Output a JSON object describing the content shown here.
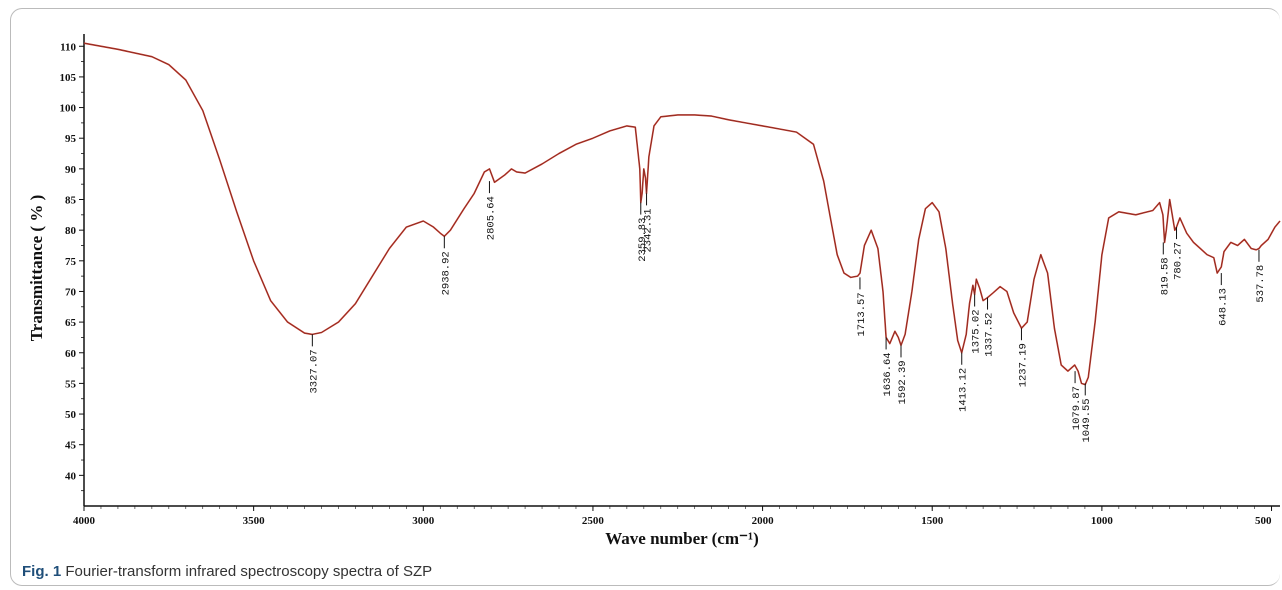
{
  "chart_data": {
    "type": "line",
    "title": "",
    "xlabel": "Wave number (cm⁻¹)",
    "ylabel": "Transmittance ( % )",
    "xlim": [
      4000,
      475
    ],
    "ylim": [
      35,
      112
    ],
    "x_ticks": [
      4000,
      3500,
      3000,
      2500,
      2000,
      1500,
      1000,
      500
    ],
    "y_ticks": [
      40,
      45,
      50,
      55,
      60,
      65,
      70,
      75,
      80,
      85,
      90,
      95,
      100,
      105,
      110
    ],
    "grid": false,
    "legend": "none",
    "line_color": "#c0392b",
    "series": [
      {
        "x": [
          4000,
          3900,
          3800,
          3750,
          3700,
          3650,
          3600,
          3550,
          3500,
          3450,
          3400,
          3350,
          3327,
          3300,
          3250,
          3200,
          3150,
          3100,
          3050,
          3000,
          2970,
          2950,
          2938,
          2920,
          2880,
          2850,
          2820,
          2805,
          2790,
          2760,
          2740,
          2725,
          2700,
          2650,
          2600,
          2550,
          2500,
          2450,
          2400,
          2375,
          2362,
          2359,
          2355,
          2350,
          2345,
          2342,
          2335,
          2320,
          2300,
          2250,
          2200,
          2150,
          2100,
          2050,
          2000,
          1950,
          1900,
          1850,
          1820,
          1800,
          1780,
          1760,
          1740,
          1720,
          1713,
          1700,
          1680,
          1660,
          1645,
          1636,
          1625,
          1610,
          1600,
          1592,
          1580,
          1560,
          1540,
          1520,
          1500,
          1480,
          1460,
          1440,
          1425,
          1413,
          1400,
          1390,
          1380,
          1375,
          1370,
          1360,
          1350,
          1337,
          1320,
          1300,
          1280,
          1260,
          1237,
          1220,
          1200,
          1180,
          1160,
          1140,
          1120,
          1100,
          1080,
          1070,
          1060,
          1049,
          1040,
          1020,
          1000,
          980,
          950,
          900,
          850,
          830,
          820,
          815,
          810,
          800,
          785,
          780,
          770,
          750,
          730,
          710,
          690,
          670,
          660,
          648,
          640,
          620,
          600,
          580,
          560,
          545,
          537,
          530,
          510,
          490,
          475
        ],
        "y": [
          110.5,
          109.5,
          108.3,
          107.0,
          104.5,
          99.5,
          91.5,
          83.0,
          75.0,
          68.5,
          65.0,
          63.2,
          63.0,
          63.3,
          65.0,
          68.0,
          72.5,
          77.0,
          80.5,
          81.5,
          80.5,
          79.5,
          79.0,
          80.0,
          83.5,
          86.0,
          89.5,
          90.0,
          87.8,
          89.0,
          90.0,
          89.5,
          89.3,
          90.8,
          92.5,
          94.0,
          95.0,
          96.2,
          97.0,
          96.8,
          90.0,
          84.5,
          86.0,
          90.0,
          88.5,
          86.0,
          92.0,
          97.0,
          98.5,
          98.8,
          98.8,
          98.6,
          98.0,
          97.5,
          97.0,
          96.5,
          96.0,
          94.0,
          88.0,
          82.0,
          76.0,
          73.0,
          72.3,
          72.5,
          73.0,
          77.5,
          80.0,
          77.0,
          70.0,
          62.5,
          61.5,
          63.5,
          62.5,
          61.2,
          63.0,
          70.0,
          78.5,
          83.5,
          84.5,
          83.0,
          77.0,
          68.0,
          62.0,
          60.0,
          63.0,
          68.0,
          71.0,
          69.5,
          72.0,
          70.5,
          68.5,
          69.0,
          69.8,
          70.8,
          70.0,
          66.5,
          64.0,
          65.0,
          72.0,
          76.0,
          73.0,
          64.0,
          58.0,
          57.0,
          58.0,
          57.0,
          55.0,
          54.8,
          56.0,
          65.0,
          76.0,
          82.0,
          83.0,
          82.5,
          83.2,
          84.5,
          82.5,
          78.0,
          80.0,
          85.0,
          80.0,
          80.5,
          82.0,
          79.5,
          78.0,
          77.0,
          76.0,
          75.5,
          73.0,
          74.0,
          76.5,
          78.0,
          77.5,
          78.5,
          77.0,
          76.8,
          77.0,
          77.5,
          78.5,
          80.5,
          81.5
        ]
      }
    ],
    "peak_labels": [
      {
        "x": 3327,
        "y": 63.0,
        "label": "3327.07"
      },
      {
        "x": 2938,
        "y": 79.0,
        "label": "2938.92"
      },
      {
        "x": 2805,
        "y": 88.0,
        "label": "2805.64"
      },
      {
        "x": 2359,
        "y": 84.5,
        "label": "2359.83"
      },
      {
        "x": 2342,
        "y": 86.0,
        "label": "2342.31"
      },
      {
        "x": 1713,
        "y": 72.3,
        "label": "1713.57"
      },
      {
        "x": 1636,
        "y": 62.5,
        "label": "1636.64"
      },
      {
        "x": 1592,
        "y": 61.2,
        "label": "1592.39"
      },
      {
        "x": 1413,
        "y": 60.0,
        "label": "1413.12"
      },
      {
        "x": 1375,
        "y": 69.5,
        "label": "1375.02"
      },
      {
        "x": 1337,
        "y": 69.0,
        "label": "1337.52"
      },
      {
        "x": 1237,
        "y": 64.0,
        "label": "1237.19"
      },
      {
        "x": 1079,
        "y": 57.0,
        "label": "1079.87"
      },
      {
        "x": 1049,
        "y": 55.0,
        "label": "1049.55"
      },
      {
        "x": 819,
        "y": 78.0,
        "label": "819.58"
      },
      {
        "x": 780,
        "y": 80.5,
        "label": "780.27"
      },
      {
        "x": 648,
        "y": 73.0,
        "label": "648.13"
      },
      {
        "x": 537,
        "y": 76.8,
        "label": "537.78"
      }
    ]
  },
  "caption": {
    "figure_label": "Fig. 1",
    "text": "Fourier-transform infrared spectroscopy spectra of SZP"
  }
}
